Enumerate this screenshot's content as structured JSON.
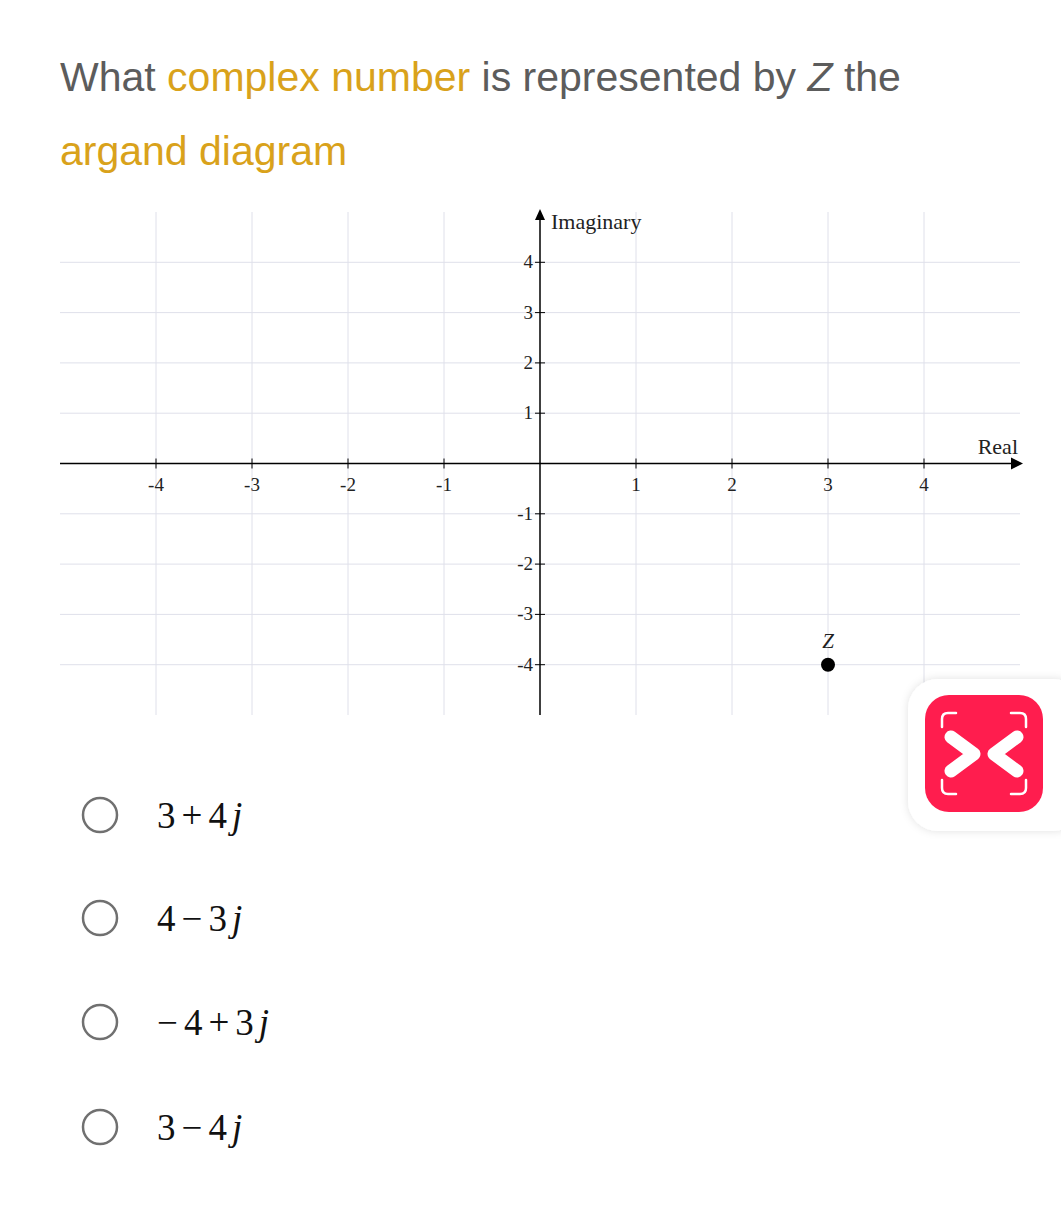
{
  "question": {
    "parts": [
      "What ",
      "complex number",
      " is represented by ",
      "Z",
      " the ",
      "argand diagram"
    ]
  },
  "chart_data": {
    "type": "scatter",
    "x_label": "Real",
    "y_label": "Imaginary",
    "xlim": [
      -5,
      5
    ],
    "ylim": [
      -5,
      5
    ],
    "xticks": [
      -4,
      -3,
      -2,
      -1,
      1,
      2,
      3,
      4
    ],
    "yticks": [
      -4,
      -3,
      -2,
      -1,
      1,
      2,
      3,
      4
    ],
    "grid": true,
    "series": [
      {
        "name": "Z",
        "x": [
          3
        ],
        "values": [
          -4
        ],
        "color": "#000000",
        "marker": "circle"
      }
    ]
  },
  "options": [
    "3+4j",
    "4−3j",
    "−4+3j",
    "3−4j"
  ]
}
